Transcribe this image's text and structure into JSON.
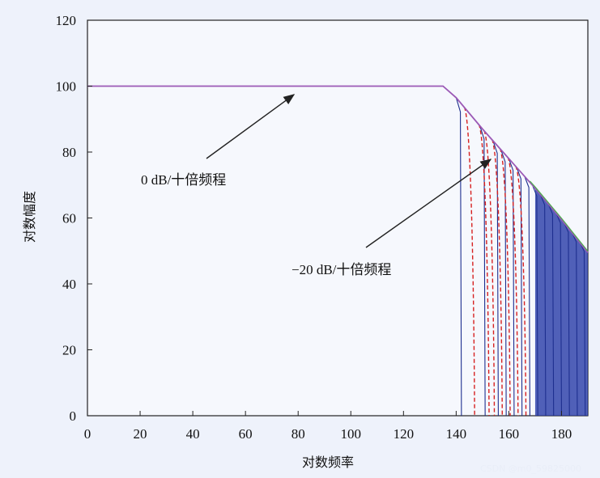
{
  "chart_data": {
    "type": "line",
    "xlabel": "对数频率",
    "ylabel": "对数幅度",
    "xlim": [
      0,
      190
    ],
    "ylim": [
      0,
      120
    ],
    "xticks": [
      0,
      20,
      40,
      60,
      80,
      100,
      120,
      140,
      160,
      180
    ],
    "yticks": [
      0,
      20,
      40,
      60,
      80,
      100,
      120
    ],
    "grid": false,
    "colors": {
      "envelope": "#9b59b6",
      "solid": "#1e2f8f",
      "dashed": "#d62020",
      "tail": "#4cae4c"
    },
    "series": [
      {
        "style": "solid-purple",
        "x": [
          0,
          135,
          140,
          150,
          160,
          170,
          180,
          190
        ],
        "y": [
          100,
          100,
          96.5,
          87,
          78,
          69,
          59.5,
          49.5
        ]
      },
      {
        "style": "solid-blue-notch-filters",
        "notch_x": [
          142,
          151,
          156,
          159,
          162,
          165,
          168,
          171,
          174,
          177,
          180,
          183,
          186,
          189
        ]
      },
      {
        "style": "dashed-red-notch-filters",
        "notch_x": [
          147,
          152.5,
          154.5,
          157.5,
          160.5,
          163.5,
          166.5
        ]
      }
    ],
    "annotations": [
      {
        "text": "0 dB/十倍频程",
        "arrow_to": [
          80,
          98
        ]
      },
      {
        "text": "−20 dB/十倍频程",
        "arrow_to": [
          153,
          84
        ]
      }
    ]
  },
  "watermark": "CSDN @m0_59825000"
}
